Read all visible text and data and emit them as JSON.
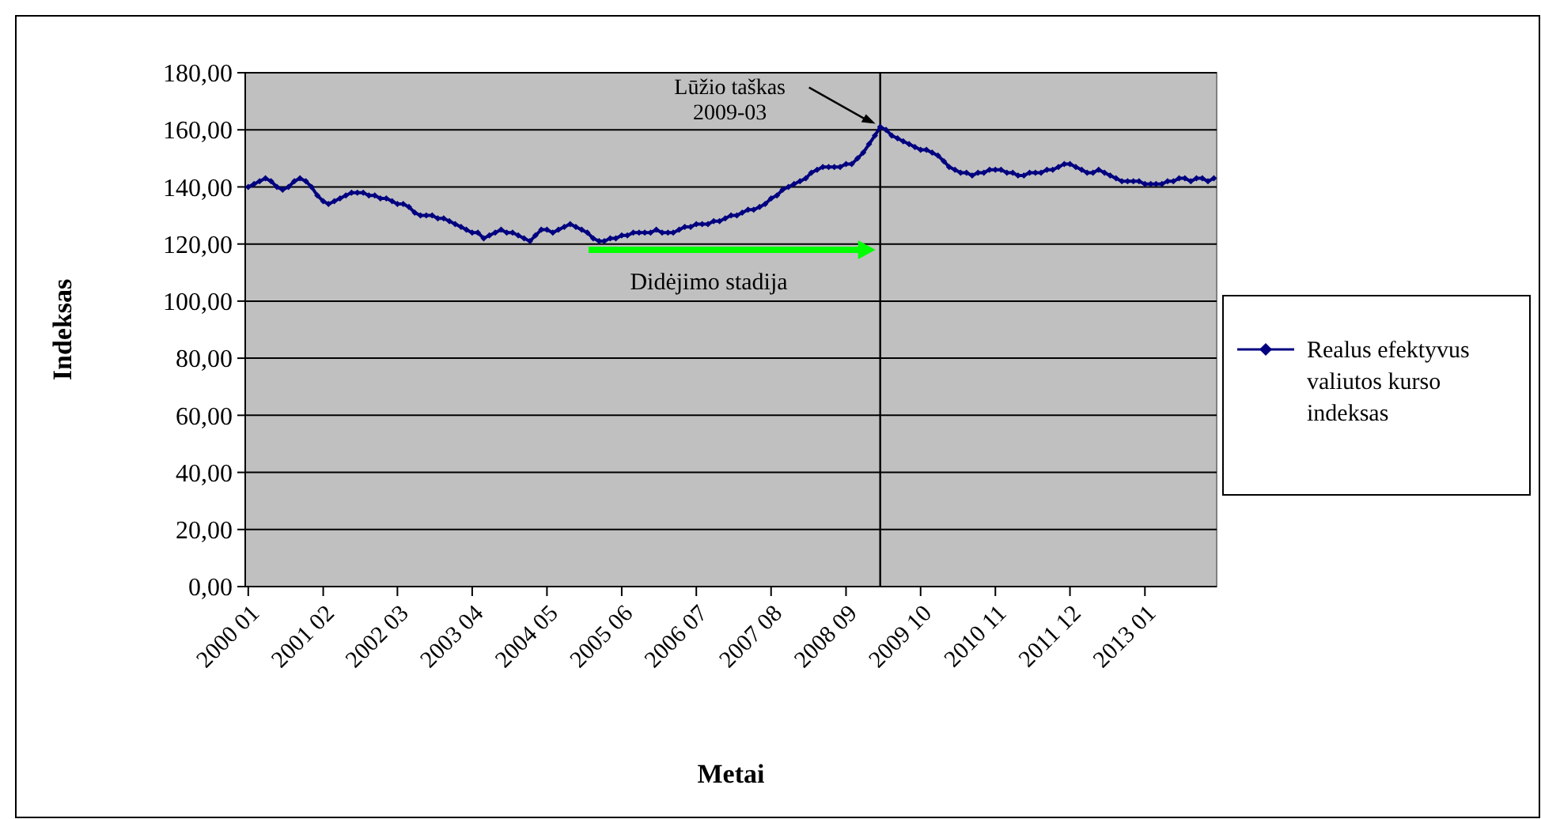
{
  "chart_data": {
    "type": "line",
    "xlabel": "Metai",
    "ylabel": "Indeksas",
    "x": [
      "2000-01",
      "2000-02",
      "2000-03",
      "2000-04",
      "2000-05",
      "2000-06",
      "2000-07",
      "2000-08",
      "2000-09",
      "2000-10",
      "2000-11",
      "2000-12",
      "2001-01",
      "2001-02",
      "2001-03",
      "2001-04",
      "2001-05",
      "2001-06",
      "2001-07",
      "2001-08",
      "2001-09",
      "2001-10",
      "2001-11",
      "2001-12",
      "2002-01",
      "2002-02",
      "2002-03",
      "2002-04",
      "2002-05",
      "2002-06",
      "2002-07",
      "2002-08",
      "2002-09",
      "2002-10",
      "2002-11",
      "2002-12",
      "2003-01",
      "2003-02",
      "2003-03",
      "2003-04",
      "2003-05",
      "2003-06",
      "2003-07",
      "2003-08",
      "2003-09",
      "2003-10",
      "2003-11",
      "2003-12",
      "2004-01",
      "2004-02",
      "2004-03",
      "2004-04",
      "2004-05",
      "2004-06",
      "2004-07",
      "2004-08",
      "2004-09",
      "2004-10",
      "2004-11",
      "2004-12",
      "2005-01",
      "2005-02",
      "2005-03",
      "2005-04",
      "2005-05",
      "2005-06",
      "2005-07",
      "2005-08",
      "2005-09",
      "2005-10",
      "2005-11",
      "2005-12",
      "2006-01",
      "2006-02",
      "2006-03",
      "2006-04",
      "2006-05",
      "2006-06",
      "2006-07",
      "2006-08",
      "2006-09",
      "2006-10",
      "2006-11",
      "2006-12",
      "2007-01",
      "2007-02",
      "2007-03",
      "2007-04",
      "2007-05",
      "2007-06",
      "2007-07",
      "2007-08",
      "2007-09",
      "2007-10",
      "2007-11",
      "2007-12",
      "2008-01",
      "2008-02",
      "2008-03",
      "2008-04",
      "2008-05",
      "2008-06",
      "2008-07",
      "2008-08",
      "2008-09",
      "2008-10",
      "2008-11",
      "2008-12",
      "2009-01",
      "2009-02",
      "2009-03",
      "2009-04",
      "2009-05",
      "2009-06",
      "2009-07",
      "2009-08",
      "2009-09",
      "2009-10",
      "2009-11",
      "2009-12",
      "2010-01",
      "2010-02",
      "2010-03",
      "2010-04",
      "2010-05",
      "2010-06",
      "2010-07",
      "2010-08",
      "2010-09",
      "2010-10",
      "2010-11",
      "2010-12",
      "2011-01",
      "2011-02",
      "2011-03",
      "2011-04",
      "2011-05",
      "2011-06",
      "2011-07",
      "2011-08",
      "2011-09",
      "2011-10",
      "2011-11",
      "2011-12",
      "2012-01",
      "2012-02",
      "2012-03",
      "2012-04",
      "2012-05",
      "2012-06",
      "2012-07",
      "2012-08",
      "2012-09",
      "2012-10",
      "2012-11",
      "2012-12",
      "2013-01",
      "2013-02",
      "2013-03",
      "2013-04",
      "2013-05",
      "2013-06",
      "2013-07",
      "2013-08",
      "2013-09",
      "2013-10",
      "2013-11",
      "2013-12",
      "2014-01"
    ],
    "series": [
      {
        "name": "Realus efektyvus valiutos kurso indeksas",
        "color": "#000080",
        "values": [
          140,
          141,
          142,
          143,
          142,
          140,
          139,
          140,
          142,
          143,
          142,
          140,
          137,
          135,
          134,
          135,
          136,
          137,
          138,
          138,
          138,
          137,
          137,
          136,
          136,
          135,
          134,
          134,
          133,
          131,
          130,
          130,
          130,
          129,
          129,
          128,
          127,
          126,
          125,
          124,
          124,
          122,
          123,
          124,
          125,
          124,
          124,
          123,
          122,
          121,
          123,
          125,
          125,
          124,
          125,
          126,
          127,
          126,
          125,
          124,
          122,
          121,
          121,
          122,
          122,
          123,
          123,
          124,
          124,
          124,
          124,
          125,
          124,
          124,
          124,
          125,
          126,
          126,
          127,
          127,
          127,
          128,
          128,
          129,
          130,
          130,
          131,
          132,
          132,
          133,
          134,
          136,
          137,
          139,
          140,
          141,
          142,
          143,
          145,
          146,
          147,
          147,
          147,
          147,
          148,
          148,
          150,
          152,
          155,
          158,
          161,
          160,
          158,
          157,
          156,
          155,
          154,
          153,
          153,
          152,
          151,
          149,
          147,
          146,
          145,
          145,
          144,
          145,
          145,
          146,
          146,
          146,
          145,
          145,
          144,
          144,
          145,
          145,
          145,
          146,
          146,
          147,
          148,
          148,
          147,
          146,
          145,
          145,
          146,
          145,
          144,
          143,
          142,
          142,
          142,
          142,
          141,
          141,
          141,
          141,
          142,
          142,
          143,
          143,
          142,
          143,
          143,
          142,
          143
        ]
      }
    ],
    "xlim": [
      "1999-12-16",
      "2014-01-16"
    ],
    "xticks": [
      {
        "value": "2000-01",
        "label": "2000 01"
      },
      {
        "value": "2001-02",
        "label": "2001 02"
      },
      {
        "value": "2002-03",
        "label": "2002 03"
      },
      {
        "value": "2003-04",
        "label": "2003 04"
      },
      {
        "value": "2004-05",
        "label": "2004 05"
      },
      {
        "value": "2005-06",
        "label": "2005 06"
      },
      {
        "value": "2006-07",
        "label": "2006 07"
      },
      {
        "value": "2007-08",
        "label": "2007 08"
      },
      {
        "value": "2008-09",
        "label": "2008 09"
      },
      {
        "value": "2009-10",
        "label": "2009 10"
      },
      {
        "value": "2010-11",
        "label": "2010 11"
      },
      {
        "value": "2011-12",
        "label": "2011 12"
      },
      {
        "value": "2013-01",
        "label": "2013 01"
      }
    ],
    "ylim": [
      0,
      180
    ],
    "yticks": [
      {
        "value": 0,
        "label": "0,00"
      },
      {
        "value": 20,
        "label": "20,00"
      },
      {
        "value": 40,
        "label": "40,00"
      },
      {
        "value": 60,
        "label": "60,00"
      },
      {
        "value": 80,
        "label": "80,00"
      },
      {
        "value": 100,
        "label": "100,00"
      },
      {
        "value": 120,
        "label": "120,00"
      },
      {
        "value": 140,
        "label": "140,00"
      },
      {
        "value": 160,
        "label": "160,00"
      },
      {
        "value": 180,
        "label": "180,00"
      }
    ],
    "grid": "y",
    "legend": "right",
    "marker": "diamond",
    "line_style": "solid",
    "ref_lines": [
      {
        "axis": "x",
        "value": "2009-03",
        "color": "#000000"
      }
    ],
    "annotations": [
      {
        "text": "Lūžio taškas\n2009-03",
        "x": "2009-03",
        "y": 161
      },
      "Didėjimo stadija"
    ]
  }
}
